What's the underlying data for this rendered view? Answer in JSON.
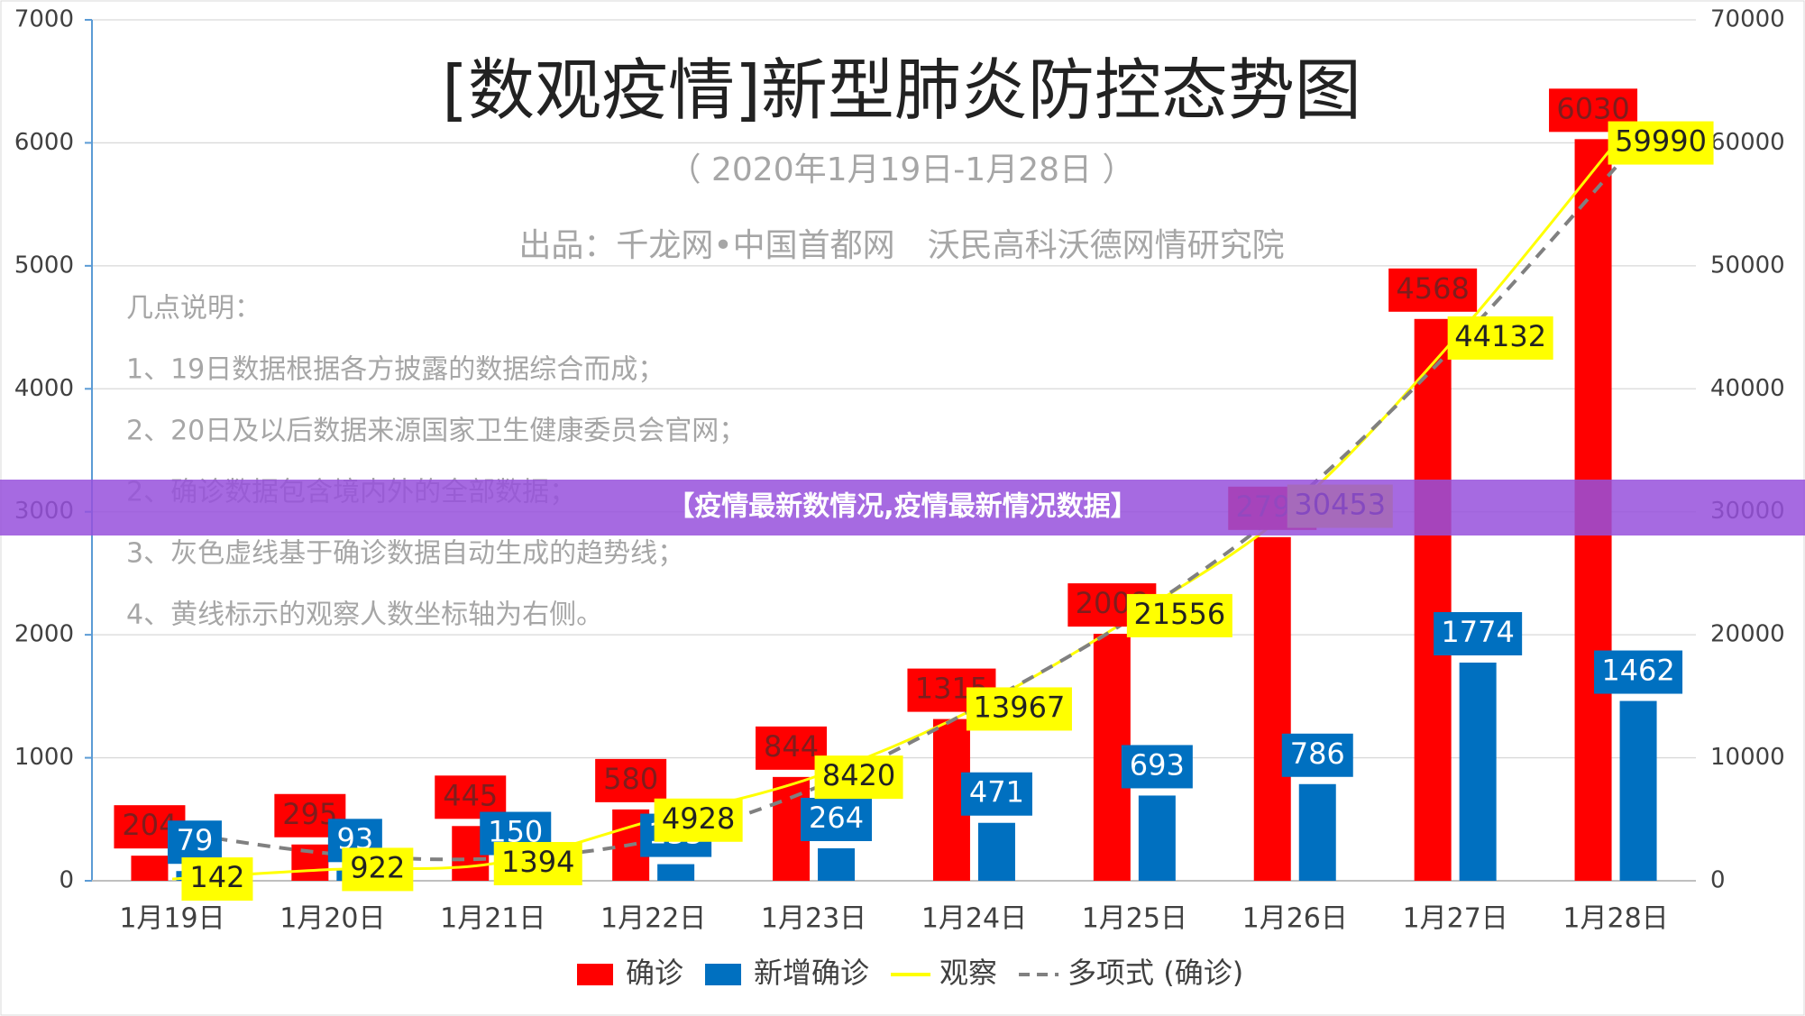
{
  "chart_data": {
    "type": "bar-line",
    "title": "[数观疫情]新型肺炎防控态势图",
    "subtitle": "（ 2020年1月19日-1月28日 ）",
    "source": "出品：千龙网•中国首都网　沃民高科沃德网情研究院",
    "notes": [
      "几点说明：",
      "1、19日数据根据各方披露的数据综合而成；",
      "2、20日及以后数据来源国家卫生健康委员会官网；",
      "2、确诊数据包含境内外的全部数据；",
      "3、灰色虚线基于确诊数据自动生成的趋势线；",
      "4、黄线标示的观察人数坐标轴为右侧。"
    ],
    "banner": "【疫情最新数情况,疫情最新情况数据】",
    "categories": [
      "1月19日",
      "1月20日",
      "1月21日",
      "1月22日",
      "1月23日",
      "1月24日",
      "1月25日",
      "1月26日",
      "1月27日",
      "1月28日"
    ],
    "series": [
      {
        "name": "确诊",
        "type": "bar",
        "color": "#ff0000",
        "values": [
          204,
          295,
          445,
          580,
          844,
          1315,
          2008,
          2794,
          4568,
          6030
        ]
      },
      {
        "name": "新增确诊",
        "type": "bar",
        "color": "#0070c0",
        "values": [
          79,
          93,
          150,
          135,
          264,
          471,
          693,
          786,
          1774,
          1462
        ]
      },
      {
        "name": "观察",
        "type": "line",
        "axis": "y2",
        "color": "#ffff00",
        "values": [
          142,
          922,
          1394,
          4928,
          8420,
          13967,
          21556,
          30453,
          44132,
          59990
        ]
      },
      {
        "name": "多项式 (确诊)",
        "type": "trend",
        "color": "#808080",
        "values": [
          400,
          220,
          180,
          330,
          750,
          1400,
          2150,
          3100,
          4350,
          5800
        ]
      }
    ],
    "ylim": [
      0,
      7000
    ],
    "yticks": [
      0,
      1000,
      2000,
      3000,
      4000,
      5000,
      6000,
      7000
    ],
    "y2lim": [
      0,
      70000
    ],
    "y2ticks": [
      0,
      10000,
      20000,
      30000,
      40000,
      50000,
      60000,
      70000
    ],
    "grid": true
  }
}
